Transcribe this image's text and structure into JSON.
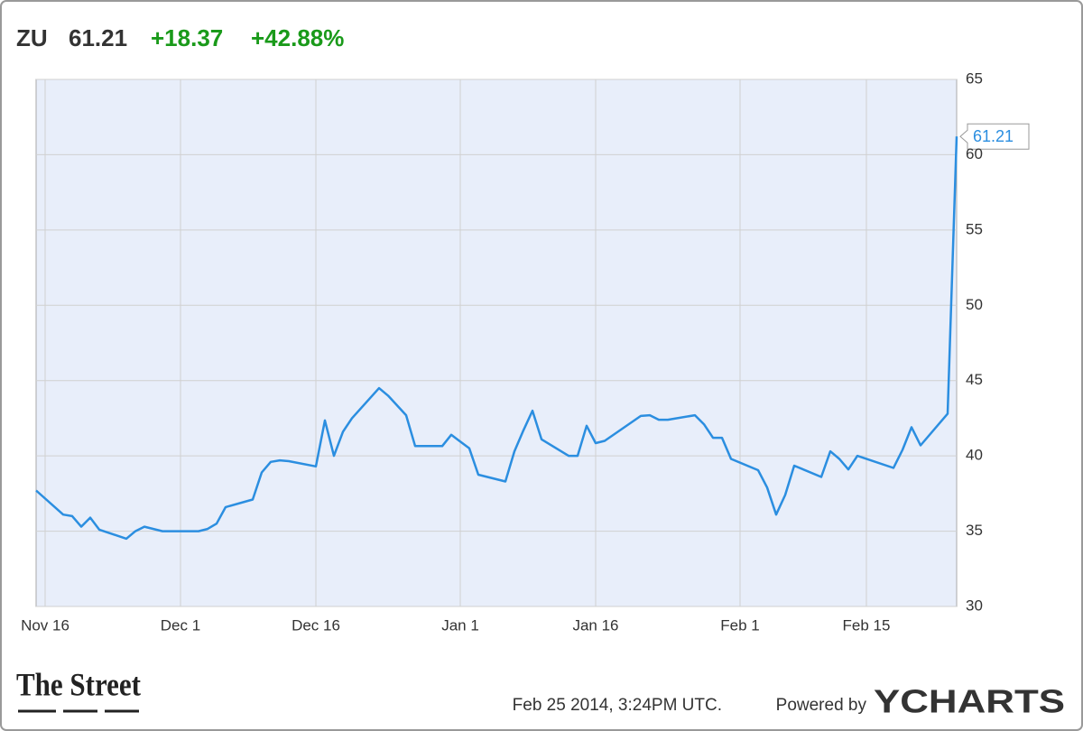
{
  "header": {
    "ticker": "ZU",
    "change": "+18.37",
    "change_percent": "+42.88%"
  },
  "chart_data": {
    "type": "line",
    "color": "#2b8ee0",
    "grid": true,
    "x": [
      "Nov 15",
      "Nov 18",
      "Nov 19",
      "Nov 20",
      "Nov 21",
      "Nov 22",
      "Nov 25",
      "Nov 26",
      "Nov 27",
      "Nov 29",
      "Dec 2",
      "Dec 3",
      "Dec 4",
      "Dec 5",
      "Dec 6",
      "Dec 9",
      "Dec 10",
      "Dec 11",
      "Dec 12",
      "Dec 13",
      "Dec 16",
      "Dec 17",
      "Dec 18",
      "Dec 19",
      "Dec 20",
      "Dec 23",
      "Dec 24",
      "Dec 26",
      "Dec 27",
      "Dec 30",
      "Dec 31",
      "Jan 2",
      "Jan 3",
      "Jan 6",
      "Jan 7",
      "Jan 8",
      "Jan 9",
      "Jan 10",
      "Jan 13",
      "Jan 14",
      "Jan 15",
      "Jan 16",
      "Jan 17",
      "Jan 21",
      "Jan 22",
      "Jan 23",
      "Jan 24",
      "Jan 27",
      "Jan 28",
      "Jan 29",
      "Jan 30",
      "Jan 31",
      "Feb 3",
      "Feb 4",
      "Feb 5",
      "Feb 6",
      "Feb 7",
      "Feb 10",
      "Feb 11",
      "Feb 12",
      "Feb 13",
      "Feb 14",
      "Feb 18",
      "Feb 19",
      "Feb 20",
      "Feb 21",
      "Feb 24",
      "Feb 25"
    ],
    "values": [
      37.7,
      36.1,
      36.0,
      35.3,
      35.9,
      35.1,
      34.5,
      35.0,
      35.3,
      35.0,
      35.0,
      35.0,
      35.15,
      35.5,
      36.6,
      37.1,
      38.9,
      39.6,
      39.7,
      39.65,
      39.3,
      42.35,
      40.0,
      41.6,
      42.5,
      44.5,
      44.0,
      42.7,
      40.65,
      40.65,
      41.4,
      40.5,
      38.75,
      38.3,
      40.3,
      41.7,
      43.0,
      41.1,
      40.0,
      40.0,
      42.0,
      40.85,
      41.0,
      42.65,
      42.7,
      42.4,
      42.4,
      42.7,
      42.1,
      41.2,
      41.2,
      39.8,
      39.05,
      37.9,
      36.1,
      37.4,
      39.35,
      38.6,
      40.3,
      39.8,
      39.1,
      40.0,
      39.2,
      40.4,
      41.9,
      40.7,
      42.8,
      61.21
    ],
    "xlim": [
      "Nov 15",
      "Feb 25"
    ],
    "xticks": [
      "Nov 16",
      "Dec 1",
      "Dec 16",
      "Jan 1",
      "Jan 16",
      "Feb 1",
      "Feb 15"
    ],
    "ylim": [
      30,
      65
    ],
    "yticks": [
      30,
      35,
      40,
      45,
      50,
      55,
      60,
      65
    ]
  },
  "footer": {
    "source_logo": "The Street",
    "timestamp": "Feb 25 2014, 3:24PM UTC.",
    "powered_by": "Powered by",
    "brand": "YCHARTS"
  }
}
